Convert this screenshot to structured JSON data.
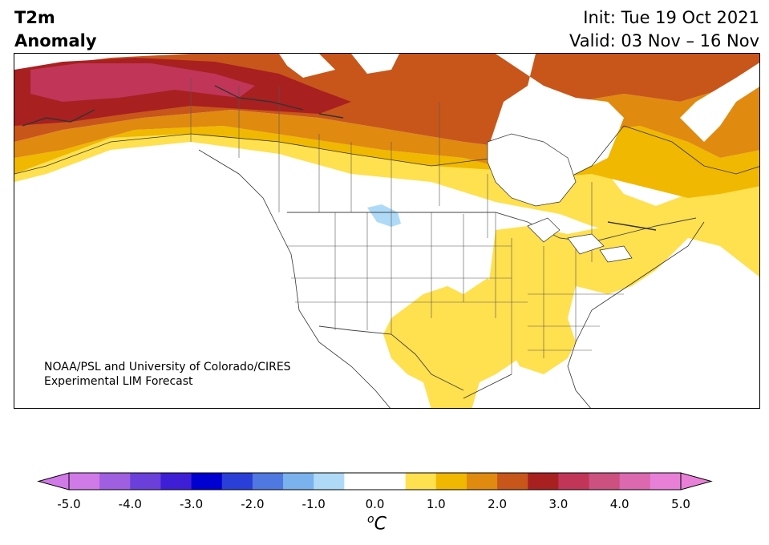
{
  "title": {
    "line1": "T2m",
    "line2": "Anomaly"
  },
  "run": {
    "init": "Init: Tue 19 Oct 2021",
    "valid": "Valid: 03 Nov – 16 Nov"
  },
  "credit": {
    "line1": "NOAA/PSL and University of Colorado/CIRES",
    "line2": "Experimental LIM Forecast"
  },
  "colorbar": {
    "unit_base": "C",
    "unit_super": "o",
    "min": -5.0,
    "max": 5.0,
    "step": 0.5,
    "colors": [
      "#d07ae8",
      "#a05ee0",
      "#6a3fda",
      "#3f1fd6",
      "#0000d0",
      "#2a3fd8",
      "#4f78e0",
      "#7ab2ee",
      "#aedaf8",
      "#ffffff",
      "#ffffff",
      "#ffe04e",
      "#f0b800",
      "#e08a10",
      "#c8561a",
      "#a82020",
      "#c03558",
      "#cc5080",
      "#dc68b0",
      "#e880d8"
    ],
    "extend_low": "#d07ae8",
    "extend_high": "#e880d8",
    "ticks": [
      "-5.0",
      "-4.0",
      "-3.0",
      "-2.0",
      "-1.0",
      "0.0",
      "1.0",
      "2.0",
      "3.0",
      "4.0",
      "5.0"
    ]
  },
  "map": {
    "region": "North America",
    "warm_anomaly_regions": [
      "Alaska and northwestern Canada (+2.5 to +3.5)",
      "northern Canada (+1.5 to +2.5)",
      "Hudson Bay and Quebec (+0.5 to +1.5)",
      "Great Lakes and Ohio Valley (+0.5 to +1.0)",
      "southern Plains and Gulf coast (+0.5 to +1.0)"
    ],
    "cool_anomaly_regions": [
      "Montana / northern Plains (-0.5 to -1.0)"
    ]
  }
}
